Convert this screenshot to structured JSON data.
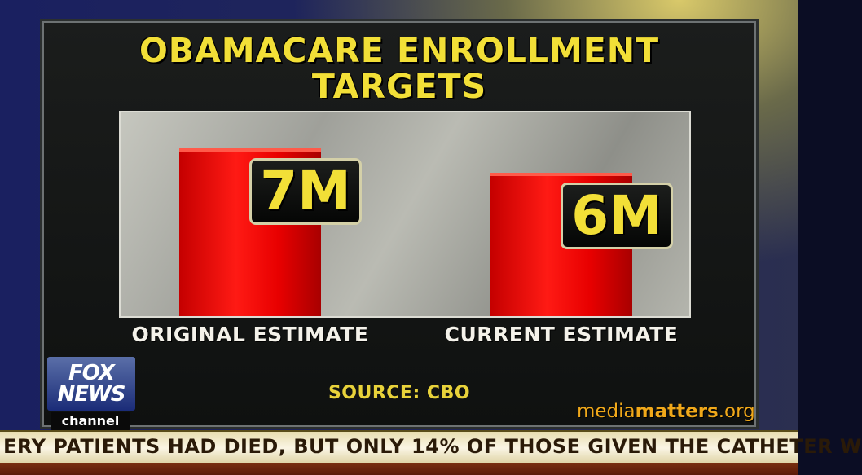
{
  "chart_data": {
    "type": "bar",
    "title": "OBAMACARE ENROLLMENT",
    "subtitle": "TARGETS",
    "categories": [
      "ORIGINAL ESTIMATE",
      "CURRENT ESTIMATE"
    ],
    "values": [
      7,
      6
    ],
    "value_labels": [
      "7M",
      "6M"
    ],
    "unit": "M",
    "source": "SOURCE: CBO",
    "ylim": [
      0,
      8.5
    ],
    "grid": false,
    "legend": "none",
    "colors": {
      "bar": "#e80000",
      "label_text": "#f2df37",
      "title": "#f2df37"
    }
  },
  "broadcast": {
    "logo_text_1": "FOX",
    "logo_text_2": "NEWS",
    "logo_channel": "channel",
    "ticker": "ERY PATIENTS HAD DIED, BUT ONLY 14% OF THOSE GIVEN THE CATHETER W",
    "watermark_prefix": "media",
    "watermark_bold": "matters",
    "watermark_suffix": ".org"
  }
}
